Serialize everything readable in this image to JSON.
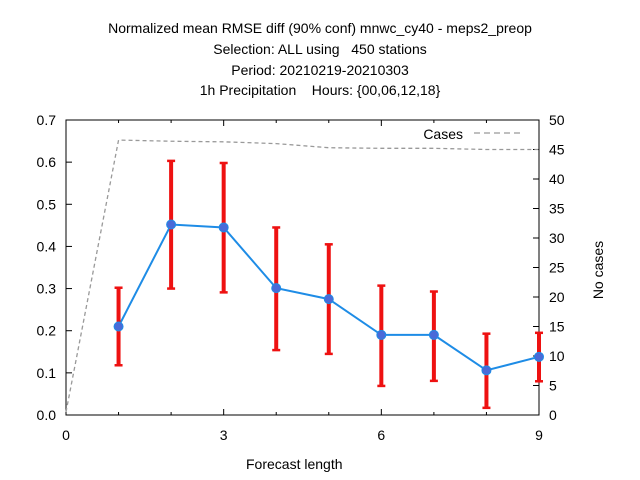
{
  "chart_data": {
    "type": "line",
    "title_lines": [
      "Normalized mean RMSE diff (90% conf) mnwc_cy40 - meps2_preop",
      "Selection: ALL using   450 stations",
      "Period: 20210219-20210303",
      "1h Precipitation    Hours: {00,06,12,18}"
    ],
    "xlabel": "Forecast length",
    "ylabel": "",
    "y2label": "No cases",
    "xlim": [
      0,
      9
    ],
    "ylim": [
      0,
      0.7
    ],
    "y2lim": [
      0,
      50
    ],
    "xticks": [
      0,
      3,
      6,
      9
    ],
    "yticks": [
      0,
      0.1,
      0.2,
      0.3,
      0.4,
      0.5,
      0.6,
      0.7
    ],
    "y2ticks": [
      0,
      5,
      10,
      15,
      20,
      25,
      30,
      35,
      40,
      45,
      50
    ],
    "grid": false,
    "legend_position": "top-right",
    "colors": {
      "series": "#1e8ce6",
      "marker": "#4a6ad8",
      "errorbar": "#ee1111",
      "cases": "#999999"
    },
    "series": [
      {
        "x": [
          1,
          2,
          3,
          4,
          5,
          6,
          7,
          8,
          9
        ],
        "values": [
          0.21,
          0.452,
          0.445,
          0.301,
          0.275,
          0.19,
          0.19,
          0.106,
          0.138
        ],
        "lower": [
          0.118,
          0.3,
          0.291,
          0.154,
          0.145,
          0.069,
          0.081,
          0.017,
          0.08
        ],
        "upper": [
          0.302,
          0.603,
          0.598,
          0.445,
          0.405,
          0.307,
          0.293,
          0.193,
          0.195
        ]
      },
      {
        "name": "Cases",
        "axis": "y2",
        "x": [
          0,
          1,
          2,
          3,
          4,
          5,
          6,
          7,
          8,
          9
        ],
        "values": [
          0.5,
          46.6,
          46.4,
          46.3,
          46.0,
          45.3,
          45.2,
          45.2,
          45.0,
          45.0
        ]
      }
    ]
  }
}
